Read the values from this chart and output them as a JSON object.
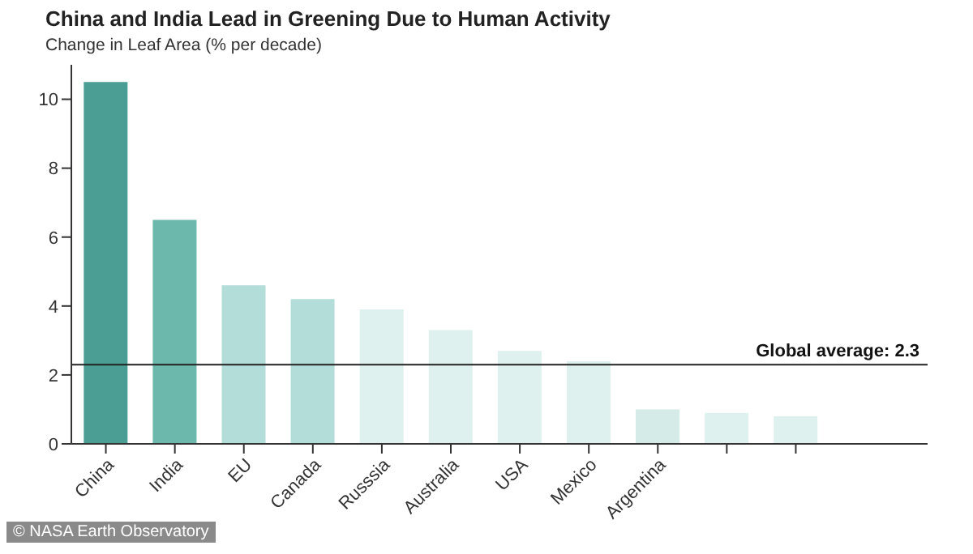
{
  "chart_data": {
    "type": "bar",
    "title": "China and India Lead in Greening Due to Human Activity",
    "subtitle": "Change in Leaf Area (% per decade)",
    "categories": [
      "China",
      "India",
      "EU",
      "Canada",
      "Russsia",
      "Australia",
      "USA",
      "Mexico",
      "Argentina",
      null,
      null
    ],
    "values": [
      10.5,
      6.5,
      4.6,
      4.2,
      3.9,
      3.3,
      2.7,
      2.4,
      1.0,
      0.9,
      0.8
    ],
    "colors": [
      "#4a9e94",
      "#6db8ac",
      "#b3ddd8",
      "#b3ddd8",
      "#dff1ee",
      "#dff1ee",
      "#dff1ee",
      "#dff1ee",
      "#d4ebe8",
      "#dff1ee",
      "#dff1ee"
    ],
    "ylim": [
      0,
      11
    ],
    "yticks": [
      0,
      2,
      4,
      6,
      8,
      10
    ],
    "grid": false,
    "legend": false,
    "ref_lines": [
      {
        "axis": "y",
        "value": 2.3,
        "label": "Global average: 2.3",
        "color": "#222222"
      }
    ],
    "annotations": [
      "© NASA Earth Observatory"
    ]
  }
}
